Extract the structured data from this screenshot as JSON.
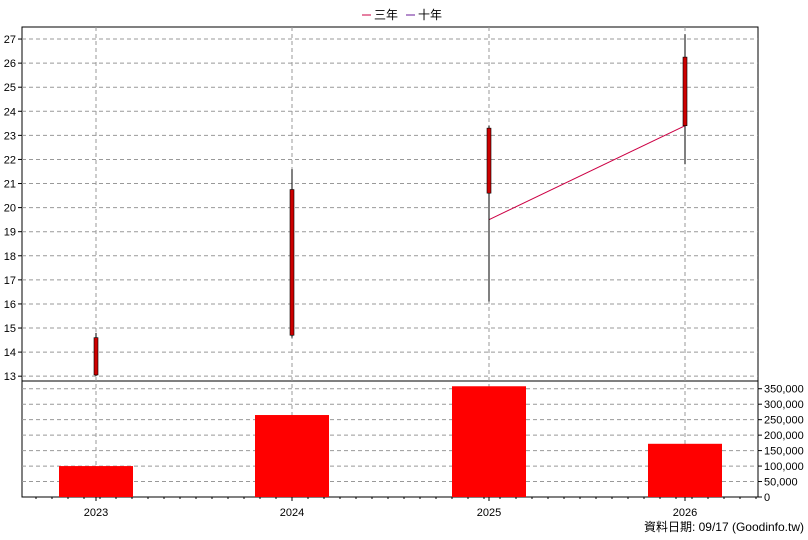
{
  "chart_data": {
    "type": "candlestick+bar",
    "legend": {
      "placement": "top-center",
      "items": [
        {
          "label": "三年",
          "color": "#cc0044"
        },
        {
          "label": "十年",
          "color": "#6a1b9a"
        }
      ]
    },
    "x_categories": [
      "2023",
      "2024",
      "2025",
      "2026"
    ],
    "price_axis": {
      "side": "left",
      "range": [
        12.8,
        27.5
      ],
      "ticks": [
        13,
        14,
        15,
        16,
        17,
        18,
        19,
        20,
        21,
        22,
        23,
        24,
        25,
        26,
        27
      ]
    },
    "volume_axis": {
      "side": "right",
      "range": [
        0,
        375000
      ],
      "ticks": [
        "0",
        "50,000",
        "100,000",
        "150,000",
        "200,000",
        "250,000",
        "300,000",
        "350,000"
      ],
      "tick_values": [
        0,
        50000,
        100000,
        150000,
        200000,
        250000,
        300000,
        350000
      ]
    },
    "candles": [
      {
        "year": "2023",
        "open": 14.6,
        "close": 13.05,
        "high": 14.8,
        "low": 13.0,
        "color": "#cc0000"
      },
      {
        "year": "2024",
        "open": 14.7,
        "close": 20.75,
        "high": 21.6,
        "low": 14.6,
        "color": "#cc0000"
      },
      {
        "year": "2025",
        "open": 20.6,
        "close": 23.3,
        "high": 23.4,
        "low": 16.1,
        "color": "#cc0000"
      },
      {
        "year": "2026",
        "open": 23.4,
        "close": 26.25,
        "high": 27.2,
        "low": 21.8,
        "color": "#cc0000"
      }
    ],
    "ma_three_year": {
      "label": "三年",
      "color": "#cc0044",
      "points": [
        {
          "year": "2025",
          "value": 19.5
        },
        {
          "year": "2026",
          "value": 23.4
        }
      ]
    },
    "volume": {
      "color": "#ff0000",
      "values": [
        {
          "year": "2023",
          "value": 100000
        },
        {
          "year": "2024",
          "value": 265000
        },
        {
          "year": "2025",
          "value": 358000
        },
        {
          "year": "2026",
          "value": 172000
        }
      ]
    },
    "grid": true
  },
  "footer": {
    "date_text": "資料日期: 09/17  (Goodinfo.tw)"
  }
}
